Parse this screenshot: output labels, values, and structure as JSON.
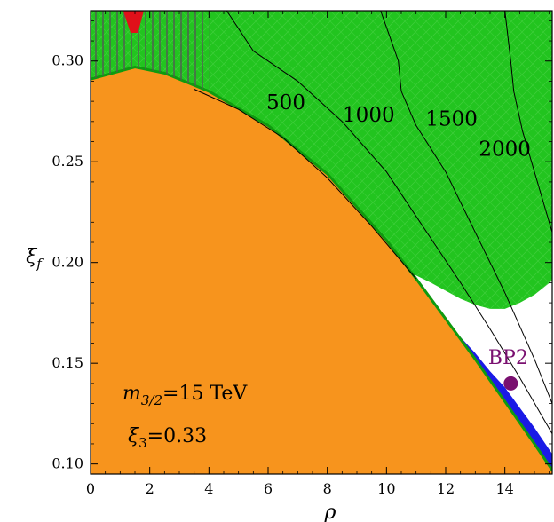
{
  "chart_data": {
    "type": "area",
    "title": "",
    "xlabel": "ρ",
    "ylabel": "ξ",
    "ylabel_sub": "f",
    "xlim": [
      0,
      15.6
    ],
    "ylim": [
      0.095,
      0.325
    ],
    "xticks": [
      0,
      2,
      4,
      6,
      8,
      10,
      12,
      14
    ],
    "xtick_labels": [
      "0",
      "2",
      "4",
      "6",
      "8",
      "10",
      "12",
      "14"
    ],
    "yticks": [
      0.1,
      0.15,
      0.2,
      0.25,
      0.3
    ],
    "ytick_labels": [
      "0.10",
      "0.15",
      "0.20",
      "0.25",
      "0.30"
    ],
    "grid": false,
    "regions": [
      {
        "name": "orange",
        "color": "#f7941d"
      },
      {
        "name": "green",
        "color": "#22c41f"
      },
      {
        "name": "blue",
        "color": "#1a1ae6"
      },
      {
        "name": "red",
        "color": "#e0101a"
      },
      {
        "name": "white",
        "color": "#ffffff"
      }
    ],
    "orange_boundary": {
      "x": [
        0,
        1.5,
        2.5,
        4,
        6,
        8,
        10,
        11,
        12,
        13,
        14,
        15,
        15.6
      ],
      "y": [
        0.291,
        0.297,
        0.294,
        0.285,
        0.268,
        0.244,
        0.211,
        0.192,
        0.172,
        0.152,
        0.131,
        0.11,
        0.097
      ]
    },
    "blue_band_upper": {
      "x": [
        10.8,
        11.5,
        12,
        12.5,
        13,
        13.5,
        14,
        14.5,
        15,
        15.6
      ],
      "y": [
        0.195,
        0.18,
        0.172,
        0.163,
        0.155,
        0.146,
        0.138,
        0.128,
        0.118,
        0.105
      ]
    },
    "green_lower_boundary": {
      "x": [
        10.8,
        11.5,
        12,
        12.5,
        13,
        13.5,
        14,
        14.5,
        15,
        15.6
      ],
      "y": [
        0.195,
        0.19,
        0.186,
        0.182,
        0.179,
        0.177,
        0.177,
        0.18,
        0.184,
        0.191
      ]
    },
    "red_region": {
      "x": [
        1.1,
        1.8,
        1.6,
        1.35
      ],
      "y": [
        0.325,
        0.325,
        0.314,
        0.314
      ]
    },
    "hatched_region_x": [
      0,
      4
    ],
    "contours": [
      {
        "label": "500",
        "label_x": 6.6,
        "label_y": 0.276,
        "x": [
          3.5,
          5,
          6.5,
          8,
          9.5,
          11
        ],
        "y": [
          0.286,
          0.276,
          0.262,
          0.242,
          0.218,
          0.192
        ]
      },
      {
        "label": "1000",
        "label_x": 9.4,
        "label_y": 0.27,
        "x": [
          4.6,
          5.5,
          7,
          8.5,
          10,
          11.5,
          12.5,
          13.5,
          14.5,
          15.6
        ],
        "y": [
          0.325,
          0.305,
          0.29,
          0.27,
          0.245,
          0.212,
          0.19,
          0.167,
          0.143,
          0.115
        ]
      },
      {
        "label": "1500",
        "label_x": 12.2,
        "label_y": 0.268,
        "x": [
          9.8,
          10.4,
          10.5,
          11,
          12,
          13,
          14,
          15,
          15.6
        ],
        "y": [
          0.325,
          0.3,
          0.285,
          0.268,
          0.245,
          0.215,
          0.185,
          0.152,
          0.13
        ]
      },
      {
        "label": "2000",
        "label_x": 14.0,
        "label_y": 0.253,
        "x": [
          14.0,
          14.2,
          14.3,
          14.6,
          15,
          15.4,
          15.6
        ],
        "y": [
          0.325,
          0.3,
          0.285,
          0.265,
          0.245,
          0.225,
          0.215
        ]
      }
    ],
    "points": [
      {
        "label": "BP2",
        "x": 14.2,
        "y": 0.14,
        "color": "#7a1070"
      }
    ],
    "annotations": {
      "mass_symbol": "m",
      "mass_sub": "3/2",
      "mass_value": "=15  TeV",
      "xi3_symbol": "ξ",
      "xi3_sub": "3",
      "xi3_value": "=0.33"
    }
  }
}
